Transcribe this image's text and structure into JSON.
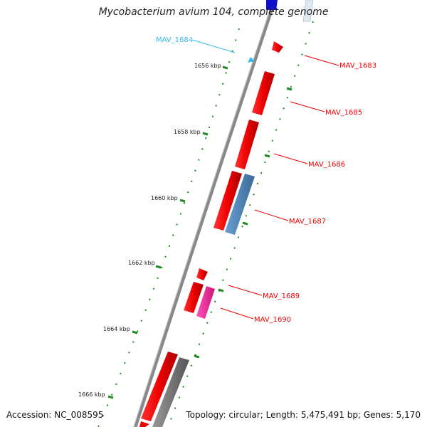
{
  "title": "Mycobacterium avium 104, complete genome",
  "footer": {
    "accession": "Accession: NC_008595",
    "summary": "Topology: circular; Length: 5,475,491 bp; Genes: 5,170"
  },
  "scale_ticks": [
    {
      "label": "1656 kbp",
      "position_kbp": 1656
    },
    {
      "label": "1658 kbp",
      "position_kbp": 1658
    },
    {
      "label": "1660 kbp",
      "position_kbp": 1660
    },
    {
      "label": "1662 kbp",
      "position_kbp": 1662
    },
    {
      "label": "1664 kbp",
      "position_kbp": 1664
    },
    {
      "label": "1666 kbp",
      "position_kbp": 1666
    }
  ],
  "gene_labels": [
    {
      "label": "MAV_1684",
      "color": "#33bbee"
    },
    {
      "label": "MAV_1683",
      "color": "#ee0000"
    },
    {
      "label": "MAV_1685",
      "color": "#ee0000"
    },
    {
      "label": "MAV_1686",
      "color": "#ee0000"
    },
    {
      "label": "MAV_1687",
      "color": "#ee0000"
    },
    {
      "label": "MAV_1689",
      "color": "#ee0000"
    },
    {
      "label": "MAV_1690",
      "color": "#ee0000"
    }
  ],
  "colors": {
    "backbone": "#888888",
    "gene_red": "#ee1111",
    "gene_blue": "#5588bb",
    "gene_magenta": "#ee3399",
    "gene_gray": "#777777",
    "gene_darkblue": "#1111cc",
    "gene_cyan": "#33bbee",
    "tick_green": "#228822"
  }
}
